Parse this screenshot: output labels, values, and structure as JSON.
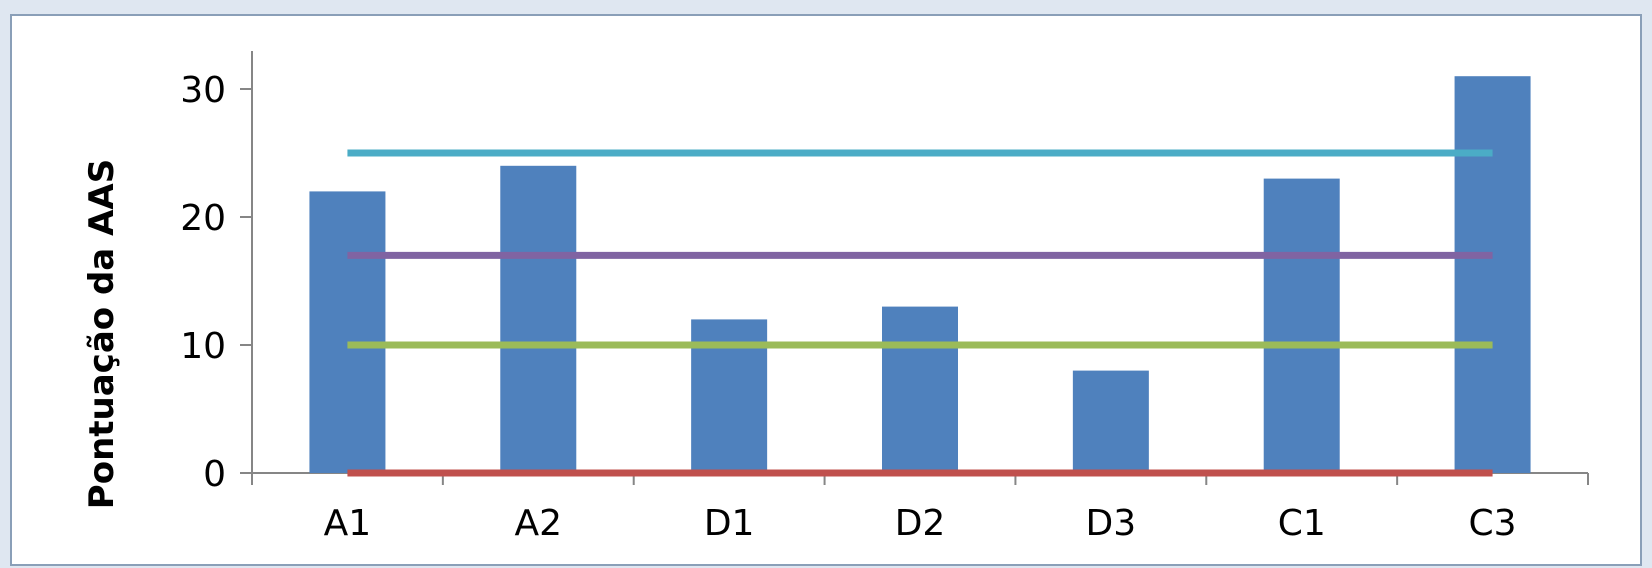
{
  "chart_data": {
    "type": "bar",
    "categories": [
      "A1",
      "A2",
      "D1",
      "D2",
      "D3",
      "C1",
      "C3"
    ],
    "values": [
      22,
      24,
      12,
      13,
      8,
      23,
      31
    ],
    "xlabel": "",
    "ylabel": "Pontuação da AAS",
    "ylim": [
      0,
      30
    ],
    "yticks": [
      0,
      10,
      20,
      30
    ],
    "bar_color": "#4f81bd",
    "reference_lines": [
      {
        "y": 25,
        "color": "#4bacc6"
      },
      {
        "y": 17,
        "color": "#8064a2"
      },
      {
        "y": 10,
        "color": "#9bbb59"
      },
      {
        "y": 0,
        "color": "#c0504d"
      }
    ],
    "grid": false,
    "legend": "none"
  }
}
